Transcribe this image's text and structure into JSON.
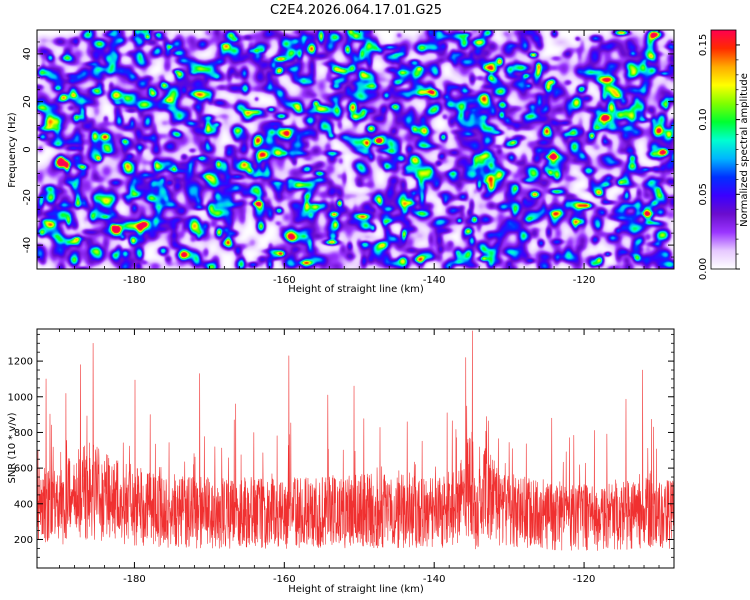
{
  "title": "C2E4.2026.064.17.01.G25",
  "colormap_stops": [
    "#ffffff",
    "#e6c8ff",
    "#9a35ff",
    "#6a0dcd",
    "#3a00ff",
    "#0030ff",
    "#00b5ff",
    "#00ffd0",
    "#00ff30",
    "#80ff00",
    "#ffff00",
    "#ffaa00",
    "#ff2a00",
    "#ff0050"
  ],
  "colors": {
    "snr_line": "#f03030",
    "axes": "#000000",
    "background": "#ffffff"
  },
  "chart_data": [
    {
      "type": "heatmap",
      "title": "C2E4.2026.064.17.01.G25",
      "xlabel": "Height of straight line (km)",
      "ylabel": "Frequency (Hz)",
      "xlim": [
        -193,
        -108
      ],
      "ylim": [
        -50,
        50
      ],
      "x_ticks": [
        -180,
        -160,
        -140,
        -120
      ],
      "x_tick_labels": [
        "-180",
        "-160",
        "-140",
        "-120"
      ],
      "y_ticks": [
        -40,
        -20,
        0,
        20,
        40
      ],
      "y_tick_labels": [
        "-40",
        "-20",
        "0",
        "20",
        "40"
      ],
      "colorbar": {
        "label": "Normalized spectral amplitude",
        "range": [
          0,
          0.16
        ],
        "ticks": [
          0,
          0.05,
          0.1,
          0.15
        ],
        "tick_labels": [
          "0.00",
          "0.05",
          "0.10",
          "0.15"
        ]
      },
      "grid": false,
      "description_values": "Dense speckle of blobs, background ~0.01-0.04, scattered peaks up to ~0.16",
      "hot_spots": [
        {
          "x": -182.5,
          "y": -33,
          "value": 0.155
        },
        {
          "x": -189.5,
          "y": 22,
          "value": 0.12
        },
        {
          "x": -148.5,
          "y": 9,
          "value": 0.13
        },
        {
          "x": -147.5,
          "y": 4,
          "value": 0.16
        },
        {
          "x": -109.5,
          "y": -1,
          "value": 0.16
        },
        {
          "x": -135.5,
          "y": -34,
          "value": 0.13
        },
        {
          "x": -176,
          "y": 27,
          "value": 0.11
        },
        {
          "x": -157,
          "y": -8,
          "value": 0.1
        },
        {
          "x": -131,
          "y": 19,
          "value": 0.1
        },
        {
          "x": -118,
          "y": -18,
          "value": 0.11
        }
      ]
    },
    {
      "type": "line",
      "title": "",
      "xlabel": "Height of straight line (km)",
      "ylabel": "SNR (10 * v/v)",
      "xlim": [
        -193,
        -108
      ],
      "ylim": [
        40,
        1380
      ],
      "x_ticks": [
        -180,
        -160,
        -140,
        -120
      ],
      "x_tick_labels": [
        "-180",
        "-160",
        "-140",
        "-120"
      ],
      "y_ticks": [
        200,
        400,
        600,
        800,
        1000,
        1200
      ],
      "y_tick_labels": [
        "200",
        "400",
        "600",
        "800",
        "1000",
        "1200"
      ],
      "grid": false,
      "series": [
        {
          "name": "SNR",
          "x_start": -193,
          "x_end": -108,
          "baseline_profile": [
            [
              -193,
              380
            ],
            [
              -190,
              400
            ],
            [
              -186,
              480
            ],
            [
              -183,
              420
            ],
            [
              -178,
              370
            ],
            [
              -172,
              350
            ],
            [
              -165,
              350
            ],
            [
              -158,
              350
            ],
            [
              -150,
              360
            ],
            [
              -145,
              360
            ],
            [
              -140,
              350
            ],
            [
              -137,
              380
            ],
            [
              -135,
              520
            ],
            [
              -134.5,
              300
            ],
            [
              -133.5,
              470
            ],
            [
              -131,
              370
            ],
            [
              -125,
              330
            ],
            [
              -118,
              320
            ],
            [
              -112,
              350
            ],
            [
              -108,
              340
            ]
          ],
          "peaks": [
            {
              "x": -185.5,
              "value": 1300
            },
            {
              "x": -187.2,
              "value": 1180
            },
            {
              "x": -191.8,
              "value": 1100
            },
            {
              "x": -171.3,
              "value": 1130
            },
            {
              "x": -159.4,
              "value": 1230
            },
            {
              "x": -154.2,
              "value": 1010
            },
            {
              "x": -150.7,
              "value": 1060
            },
            {
              "x": -134.9,
              "value": 1370
            },
            {
              "x": -135.8,
              "value": 1220
            },
            {
              "x": -112.2,
              "value": 1150
            },
            {
              "x": -166.5,
              "value": 960
            },
            {
              "x": -177.9,
              "value": 900
            },
            {
              "x": -124.3,
              "value": 880
            },
            {
              "x": -143.6,
              "value": 860
            }
          ]
        }
      ]
    }
  ]
}
